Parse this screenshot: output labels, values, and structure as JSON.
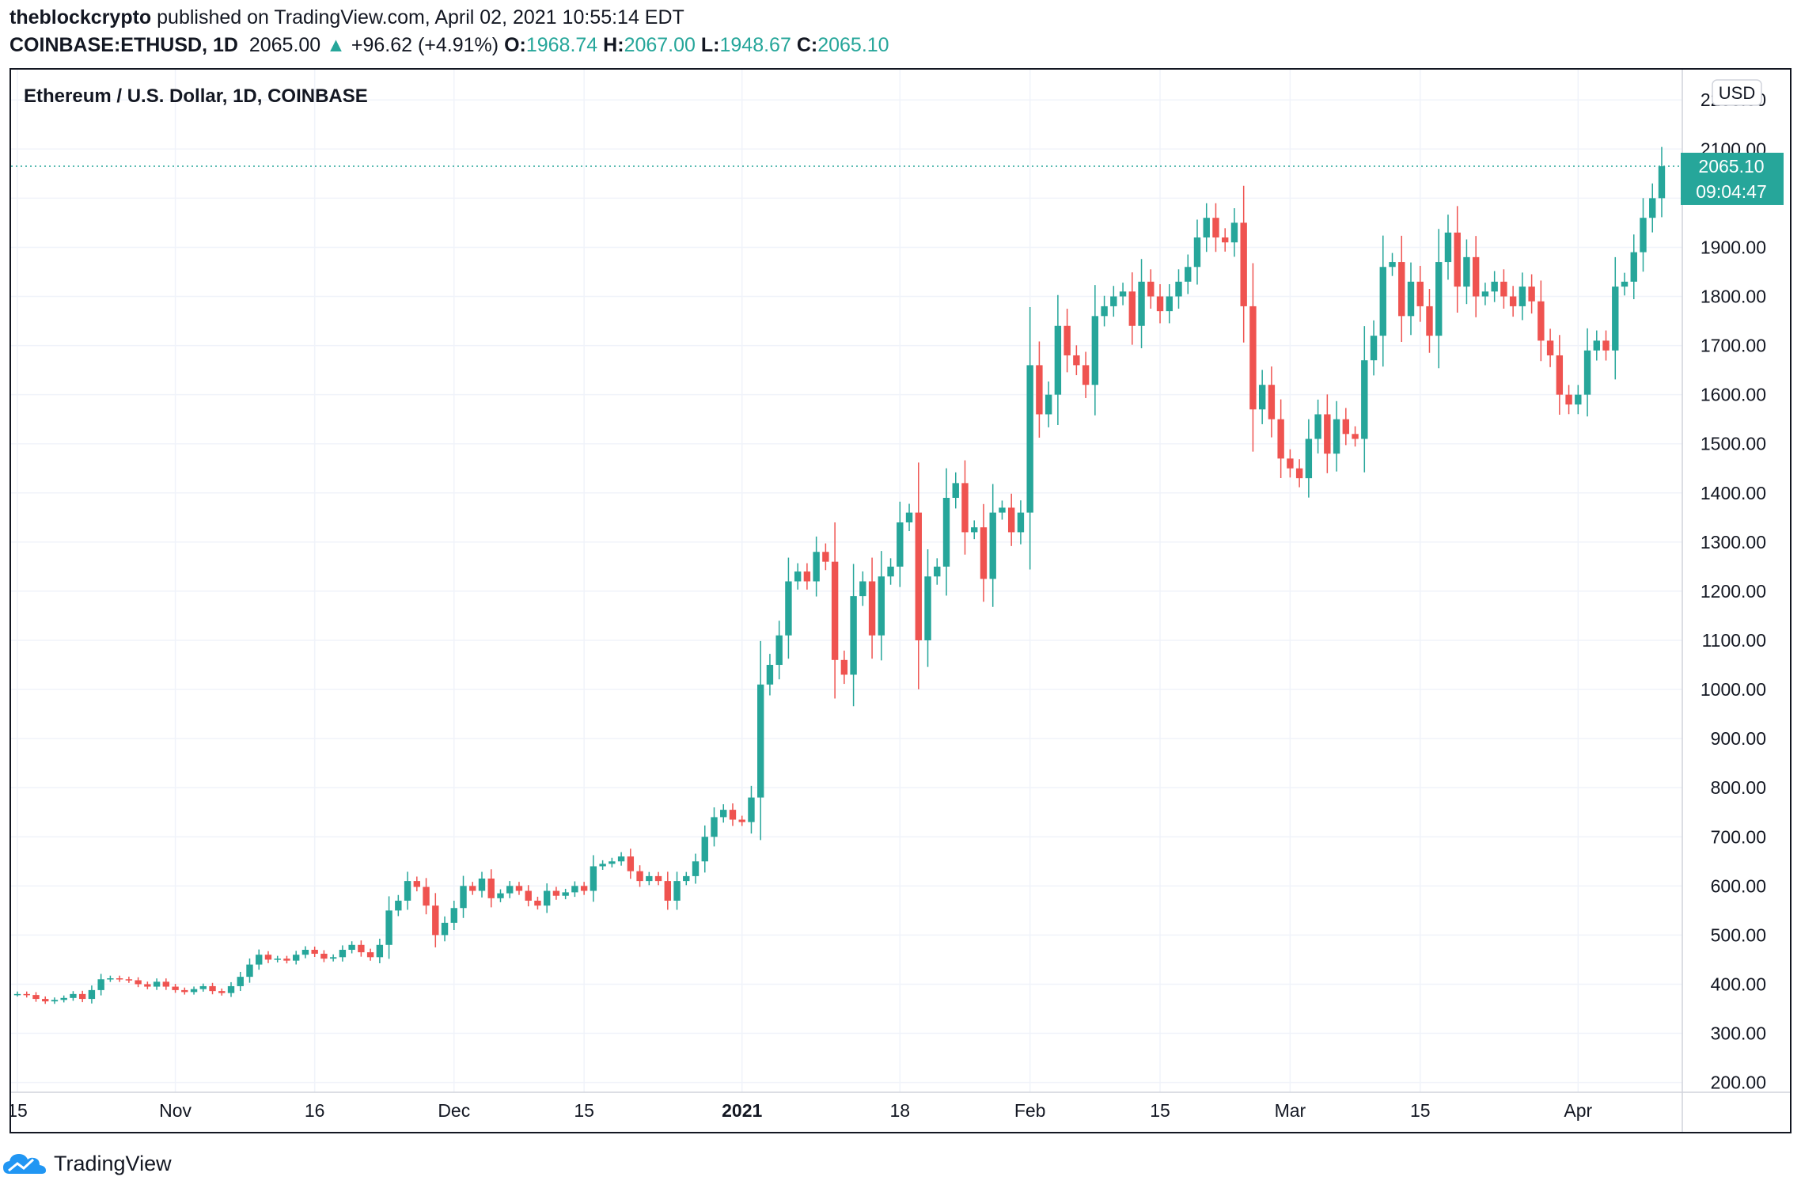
{
  "header": {
    "author": "theblockcrypto",
    "published_text": "published on TradingView.com, April 02, 2021 10:55:14 EDT",
    "symbol": "COINBASE:ETHUSD, 1D",
    "last": "2065.00",
    "arrow": "▲",
    "change": "+96.62 (+4.91%)",
    "o_label": "O:",
    "o_value": "1968.74",
    "h_label": "H:",
    "h_value": "2067.00",
    "l_label": "L:",
    "l_value": "1948.67",
    "c_label": "C:",
    "c_value": "2065.10"
  },
  "chart_data": {
    "type": "candlestick",
    "title": "Ethereum / U.S. Dollar, 1D, COINBASE",
    "currency_label": "USD",
    "ylim": [
      180,
      2260
    ],
    "y_ticks": [
      200,
      300,
      400,
      500,
      600,
      700,
      800,
      900,
      1000,
      1100,
      1200,
      1300,
      1400,
      1500,
      1600,
      1700,
      1800,
      1900,
      2000,
      2100,
      2200
    ],
    "y_tick_labels": [
      "200.00",
      "300.00",
      "400.00",
      "500.00",
      "600.00",
      "700.00",
      "800.00",
      "900.00",
      "1000.00",
      "1100.00",
      "1200.00",
      "1300.00",
      "1400.00",
      "1500.00",
      "1600.00",
      "1700.00",
      "1800.00",
      "1900.00",
      "2000.00",
      "2100.00",
      "2200.00"
    ],
    "x_ticks": [
      {
        "label": "15",
        "index": 0,
        "bold": false
      },
      {
        "label": "Nov",
        "index": 17,
        "bold": false
      },
      {
        "label": "16",
        "index": 32,
        "bold": false
      },
      {
        "label": "Dec",
        "index": 47,
        "bold": false
      },
      {
        "label": "15",
        "index": 61,
        "bold": false
      },
      {
        "label": "2021",
        "index": 78,
        "bold": true
      },
      {
        "label": "18",
        "index": 95,
        "bold": false
      },
      {
        "label": "Feb",
        "index": 109,
        "bold": false
      },
      {
        "label": "15",
        "index": 123,
        "bold": false
      },
      {
        "label": "Mar",
        "index": 137,
        "bold": false
      },
      {
        "label": "15",
        "index": 151,
        "bold": false
      },
      {
        "label": "Apr",
        "index": 168,
        "bold": false
      }
    ],
    "last_price_label": "2065.10",
    "countdown_label": "09:04:47",
    "last_price": 2065.1,
    "colors": {
      "up": "#26a69a",
      "down": "#ef5350",
      "grid": "#f0f3fa",
      "text": "#131722"
    },
    "closes": [
      380,
      378,
      370,
      365,
      368,
      372,
      380,
      370,
      388,
      410,
      412,
      410,
      408,
      400,
      395,
      405,
      395,
      388,
      384,
      390,
      396,
      386,
      382,
      396,
      415,
      440,
      460,
      450,
      452,
      448,
      460,
      470,
      462,
      452,
      455,
      470,
      480,
      465,
      455,
      480,
      550,
      570,
      610,
      598,
      560,
      500,
      525,
      555,
      600,
      590,
      615,
      575,
      585,
      600,
      590,
      570,
      560,
      590,
      580,
      587,
      600,
      590,
      640,
      645,
      650,
      660,
      630,
      610,
      620,
      610,
      570,
      610,
      620,
      650,
      700,
      740,
      755,
      735,
      730,
      780,
      1010,
      1050,
      1110,
      1220,
      1240,
      1220,
      1280,
      1260,
      1060,
      1030,
      1190,
      1220,
      1110,
      1230,
      1250,
      1340,
      1360,
      1100,
      1230,
      1250,
      1390,
      1420,
      1320,
      1330,
      1225,
      1360,
      1370,
      1320,
      1360,
      1660,
      1560,
      1600,
      1740,
      1680,
      1660,
      1620,
      1760,
      1780,
      1800,
      1810,
      1740,
      1830,
      1800,
      1770,
      1800,
      1830,
      1860,
      1920,
      1960,
      1920,
      1910,
      1950,
      1780,
      1570,
      1620,
      1550,
      1470,
      1450,
      1430,
      1510,
      1560,
      1480,
      1550,
      1520,
      1510,
      1670,
      1720,
      1860,
      1870,
      1760,
      1830,
      1780,
      1720,
      1870,
      1930,
      1820,
      1880,
      1800,
      1810,
      1830,
      1800,
      1780,
      1820,
      1790,
      1710,
      1680,
      1600,
      1580,
      1600,
      1690,
      1710,
      1690,
      1820,
      1830,
      1890,
      1960,
      2000,
      2065
    ]
  },
  "footer": {
    "brand": "TradingView"
  }
}
